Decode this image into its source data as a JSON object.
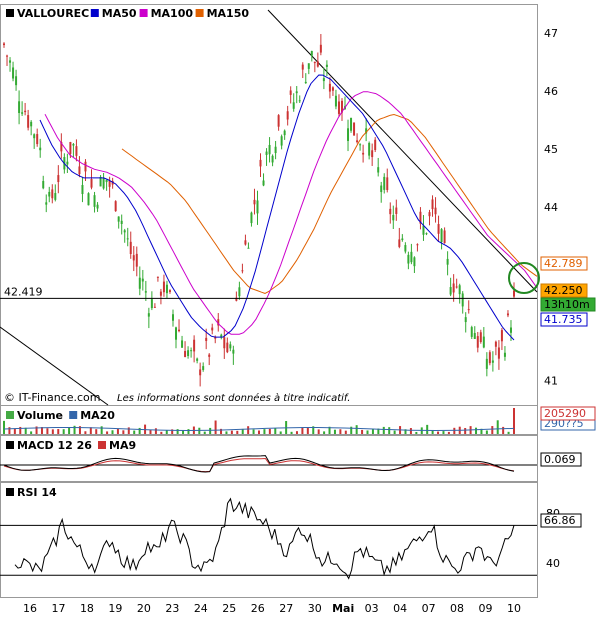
{
  "chart_data": {
    "type": "candlestick",
    "panels": [
      {
        "id": "price",
        "ylim": [
          40.75,
          47.4
        ],
        "grid": false,
        "legend": [
          {
            "name": "VALLOUREC",
            "color": "#000000"
          },
          {
            "name": "MA50",
            "color": "#0000cc"
          },
          {
            "name": "MA100",
            "color": "#cc00cc"
          },
          {
            "name": "MA150",
            "color": "#e06000"
          }
        ],
        "y_ticks": [
          "47",
          "46",
          "45",
          "44",
          "43",
          "42",
          "41"
        ],
        "y_tick_values": [
          47,
          46,
          45,
          44,
          43,
          42,
          41
        ],
        "horizontal_line": {
          "label": "42.419",
          "value": 42.419
        },
        "price_tags": [
          {
            "label": "42.789",
            "value": 42.789,
            "bg": "#ffffff",
            "border": "#e06000",
            "color": "#e06000"
          },
          {
            "label": "42.250",
            "value": 42.25,
            "bg": "#ffa500",
            "border": "#cc7a00",
            "color": "#000000"
          },
          {
            "label": "13h10m",
            "value": 42.0,
            "bg": "#33aa33",
            "border": "#228822",
            "color": "#000000"
          },
          {
            "label": "41.735",
            "value": 41.735,
            "bg": "#ffffff",
            "border": "#0000cc",
            "color": "#0000cc"
          }
        ],
        "footer_source": "© IT-Finance.com",
        "footer_note": "Les informations sont données à titre indicatif."
      },
      {
        "id": "volume",
        "legend": [
          {
            "name": "Volume",
            "color": "#44aa44"
          },
          {
            "name": "MA20",
            "color": "#3366aa"
          }
        ],
        "price_tags": [
          {
            "label": "205290",
            "bg": "#ffffff",
            "border": "#cc3333",
            "color": "#cc3333"
          },
          {
            "label": "290??5",
            "bg": "#ffffff",
            "border": "#3366aa",
            "color": "#3366aa"
          }
        ]
      },
      {
        "id": "macd",
        "legend": [
          {
            "name": "MACD 12 26",
            "color": "#000000"
          },
          {
            "name": "MA9",
            "color": "#cc3333"
          }
        ],
        "price_tags": [
          {
            "label": "0.069",
            "bg": "#ffffff",
            "border": "#000000",
            "color": "#000000"
          }
        ]
      },
      {
        "id": "rsi",
        "ylim": [
          15,
          100
        ],
        "legend": [
          {
            "name": "RSI 14",
            "color": "#000000"
          }
        ],
        "y_ticks": [
          "80",
          "40"
        ],
        "y_tick_values": [
          80,
          40
        ],
        "levels": [
          70,
          30
        ],
        "price_tags": [
          {
            "label": "66.86",
            "value": 66.86,
            "bg": "#ffffff",
            "border": "#000000",
            "color": "#000000"
          }
        ]
      }
    ],
    "x_ticks": [
      "16",
      "17",
      "18",
      "19",
      "20",
      "23",
      "24",
      "25",
      "26",
      "27",
      "30",
      "Mai",
      "03",
      "04",
      "07",
      "08",
      "09",
      "10"
    ],
    "colors": {
      "up": "#33aa33",
      "down": "#cc3333",
      "trend": "#000000",
      "highlight_circle": "#228822"
    },
    "series": {
      "close": [
        46.8,
        46.2,
        45.6,
        45.2,
        44.0,
        44.7,
        45.1,
        44.6,
        44.2,
        44.5,
        44.1,
        43.3,
        42.8,
        42.3,
        42.7,
        42.1,
        41.6,
        41.2,
        41.5,
        41.8,
        41.4,
        43.0,
        44.0,
        44.8,
        45.3,
        45.6,
        46.0,
        46.6,
        46.4,
        46.1,
        45.7,
        45.3,
        45.1,
        44.6,
        44.0,
        43.5,
        43.3,
        43.6,
        43.9,
        43.0,
        42.6,
        42.2,
        41.6,
        41.3,
        41.6,
        42.3
      ],
      "ma50": [
        45.5,
        45.1,
        44.8,
        44.6,
        44.5,
        44.5,
        44.5,
        44.4,
        44.2,
        43.9,
        43.5,
        43.1,
        42.7,
        42.4,
        42.1,
        41.9,
        41.75,
        41.75,
        41.9,
        42.3,
        42.9,
        43.6,
        44.3,
        45.0,
        45.6,
        46.1,
        46.3,
        46.2,
        46.0,
        45.8,
        45.6,
        45.3,
        45.0,
        44.6,
        44.2,
        43.8,
        43.6,
        43.4,
        43.3,
        43.1,
        42.8,
        42.5,
        42.2,
        41.9,
        41.7
      ],
      "ma100": [
        45.6,
        45.2,
        44.9,
        44.75,
        44.65,
        44.6,
        44.5,
        44.35,
        44.1,
        43.8,
        43.4,
        43.0,
        42.6,
        42.3,
        42.0,
        41.8,
        41.8,
        42.0,
        42.4,
        42.9,
        43.5,
        44.1,
        44.7,
        45.2,
        45.6,
        45.9,
        46.0,
        45.95,
        45.8,
        45.6,
        45.3,
        45.0,
        44.7,
        44.4,
        44.1,
        43.8,
        43.5,
        43.3,
        43.1,
        42.9,
        42.6
      ],
      "ma150": [
        45.0,
        44.8,
        44.6,
        44.4,
        44.1,
        43.7,
        43.3,
        42.9,
        42.6,
        42.5,
        42.7,
        43.1,
        43.6,
        44.2,
        44.7,
        45.2,
        45.5,
        45.6,
        45.5,
        45.2,
        44.8,
        44.4,
        44.0,
        43.6,
        43.3,
        43.0,
        42.8
      ],
      "rsi": [
        44,
        38,
        33,
        48,
        72,
        55,
        42,
        38,
        60,
        44,
        36,
        55,
        48,
        70,
        62,
        40,
        35,
        50,
        88,
        84,
        78,
        72,
        60,
        48,
        70,
        56,
        40,
        45,
        32,
        52,
        42,
        34,
        38,
        50,
        60,
        72,
        45,
        35,
        42,
        55,
        38,
        48,
        67
      ]
    }
  }
}
